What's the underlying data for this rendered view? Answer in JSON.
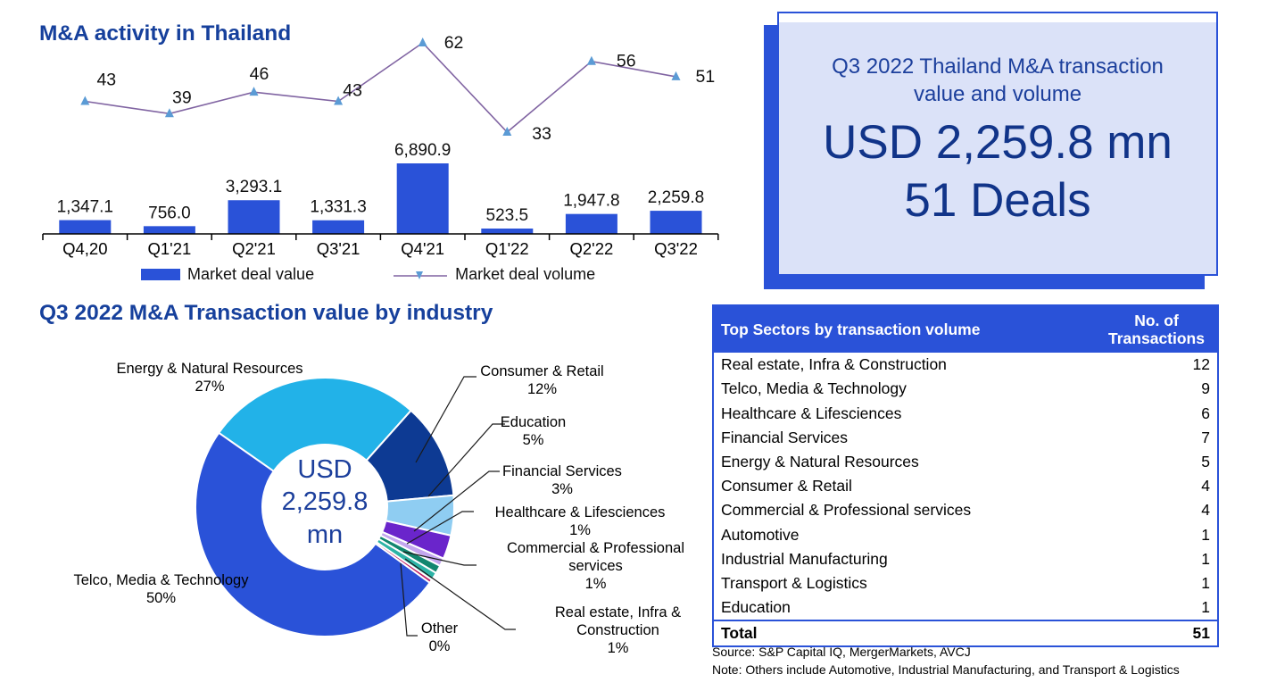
{
  "accent_colors": {
    "primary_blue": "#2a52d8",
    "title_blue": "#16409c",
    "kpi_background": "#dbe2f8",
    "kpi_text": "#113489",
    "line_purple": "#8064a2",
    "marker_blue": "#5b9bd5"
  },
  "kpi_box": {
    "subtitle": "Q3 2022 Thailand M&A transaction value and volume",
    "value": "USD 2,259.8 mn",
    "deals": "51 Deals"
  },
  "footnotes": {
    "source": "Source: S&P Capital IQ, MergerMarkets, AVCJ",
    "note": "Note: Others include Automotive, Industrial Manufacturing, and Transport & Logistics"
  },
  "chart_data": [
    {
      "type": "bar",
      "subtype": "combo-bar-line",
      "title": "M&A activity in Thailand",
      "categories": [
        "Q4,20",
        "Q1'21",
        "Q2'21",
        "Q3'21",
        "Q4'21",
        "Q1'22",
        "Q2'22",
        "Q3'22"
      ],
      "series": [
        {
          "name": "Market deal value",
          "type": "bar",
          "color": "#2a52d8",
          "values": [
            1347.1,
            756.0,
            3293.1,
            1331.3,
            6890.9,
            523.5,
            1947.8,
            2259.8
          ],
          "labels": [
            "1,347.1",
            "756.0",
            "3,293.1",
            "1,331.3",
            "6,890.9",
            "523.5",
            "1,947.8",
            "2,259.8"
          ]
        },
        {
          "name": "Market deal volume",
          "type": "line",
          "color": "#8064a2",
          "marker_color": "#5b9bd5",
          "values": [
            43,
            39,
            46,
            43,
            62,
            33,
            56,
            51
          ],
          "labels": [
            "43",
            "39",
            "46",
            "43",
            "62",
            "33",
            "56",
            "51"
          ]
        }
      ],
      "legend_position": "bottom",
      "grid": false,
      "value_axis_visible": false
    },
    {
      "type": "pie",
      "subtype": "donut",
      "title": "Q3 2022 M&A Transaction value by industry",
      "center_lines": [
        "USD",
        "2,259.8",
        "mn"
      ],
      "start_angle_deg": -55,
      "slices": [
        {
          "label": "Energy & Natural Resources",
          "pct_label": "27%",
          "value": 27,
          "color": "#22b2e8"
        },
        {
          "label": "Consumer & Retail",
          "pct_label": "12%",
          "value": 12,
          "color": "#0d3a93"
        },
        {
          "label": "Education",
          "pct_label": "5%",
          "value": 5,
          "color": "#8fcdf2"
        },
        {
          "label": "Financial Services",
          "pct_label": "3%",
          "value": 3,
          "color": "#6a25cb"
        },
        {
          "label": "Healthcare & Lifesciences",
          "pct_label": "1%",
          "value": 1,
          "color": "#c3a6ee"
        },
        {
          "label": "Commercial & Professional services",
          "pct_label": "1%",
          "value": 1,
          "color": "#12866f"
        },
        {
          "label": "Real estate, Infra & Construction",
          "pct_label": "1%",
          "value": 1,
          "color": "#2cb3a6"
        },
        {
          "label": "Other",
          "pct_label": "0%",
          "value": 0.45,
          "color": "#bf1e63"
        },
        {
          "label": "Telco, Media & Technology",
          "pct_label": "50%",
          "value": 50,
          "color": "#2a52d8"
        }
      ]
    },
    {
      "type": "table",
      "columns": [
        "Top Sectors by transaction volume",
        "No. of Transactions"
      ],
      "rows": [
        [
          "Real estate, Infra & Construction",
          12
        ],
        [
          "Telco, Media & Technology",
          9
        ],
        [
          "Healthcare & Lifesciences",
          6
        ],
        [
          "Financial Services",
          7
        ],
        [
          "Energy & Natural Resources",
          5
        ],
        [
          "Consumer & Retail",
          4
        ],
        [
          "Commercial & Professional services",
          4
        ],
        [
          "Automotive",
          1
        ],
        [
          "Industrial Manufacturing",
          1
        ],
        [
          "Transport & Logistics",
          1
        ],
        [
          "Education",
          1
        ]
      ],
      "total_row": [
        "Total",
        51
      ]
    }
  ]
}
